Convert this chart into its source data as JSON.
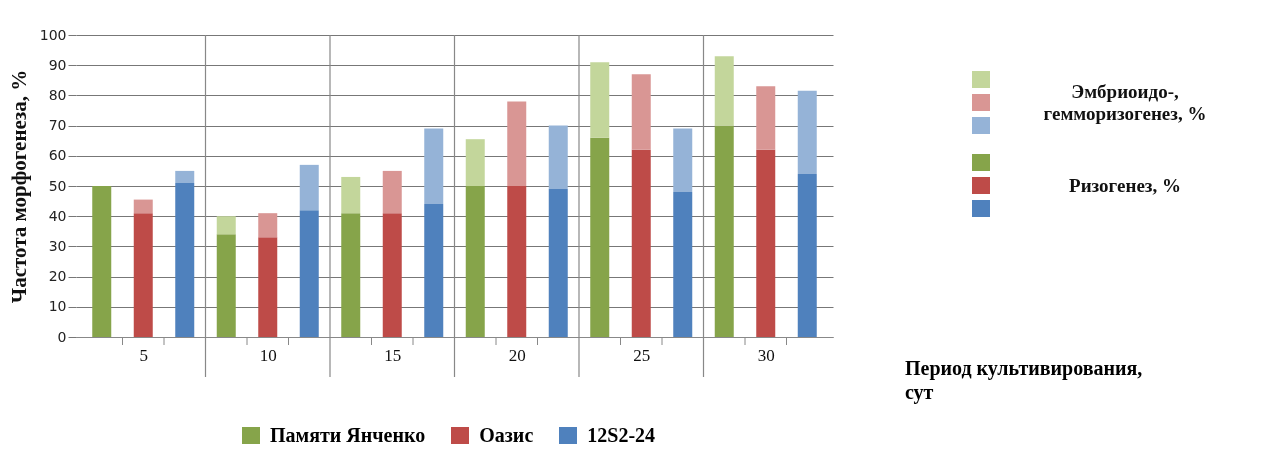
{
  "chart_data": {
    "type": "bar",
    "stacked": true,
    "ylabel": "Частота морфогенеза, %",
    "xlabel": "Период культивирования, сут",
    "categories": [
      null,
      "5",
      null,
      null,
      "10",
      null,
      null,
      "15",
      null,
      null,
      "20",
      null,
      null,
      "25",
      null,
      null,
      "30",
      null
    ],
    "series": [
      {
        "name": "Ризогенез, %",
        "colors": [
          "#86a44a",
          "#be4b48",
          "#4f81bd",
          "#86a44a",
          "#be4b48",
          "#4f81bd",
          "#86a44a",
          "#be4b48",
          "#4f81bd",
          "#86a44a",
          "#be4b48",
          "#4f81bd",
          "#86a44a",
          "#be4b48",
          "#4f81bd",
          "#86a44a",
          "#be4b48",
          "#4f81bd"
        ],
        "values": [
          50,
          41,
          51,
          34,
          33,
          42,
          41,
          41,
          44,
          50,
          50,
          49,
          66,
          62,
          48,
          70,
          62,
          54
        ]
      },
      {
        "name": "Эмбриоидо-, гемморизогенез, %",
        "colors": [
          "#c3d69b",
          "#d99694",
          "#95b3d7",
          "#c3d69b",
          "#d99694",
          "#95b3d7",
          "#c3d69b",
          "#d99694",
          "#95b3d7",
          "#c3d69b",
          "#d99694",
          "#95b3d7",
          "#c3d69b",
          "#d99694",
          "#95b3d7",
          "#c3d69b",
          "#d99694",
          "#95b3d7"
        ],
        "values": [
          null,
          4.5,
          4,
          6,
          8,
          15,
          12,
          14,
          25,
          15.5,
          28,
          21,
          25,
          25,
          21,
          23,
          21,
          27.5
        ]
      }
    ],
    "annotations": [
      "Памяти Янченко",
      "Оазис",
      "12S2-24"
    ],
    "ylim": [
      0,
      100
    ],
    "yticks": [
      0,
      10,
      20,
      30,
      40,
      50,
      60,
      70,
      80,
      90,
      100
    ],
    "grid": "y",
    "legend": "right"
  }
}
